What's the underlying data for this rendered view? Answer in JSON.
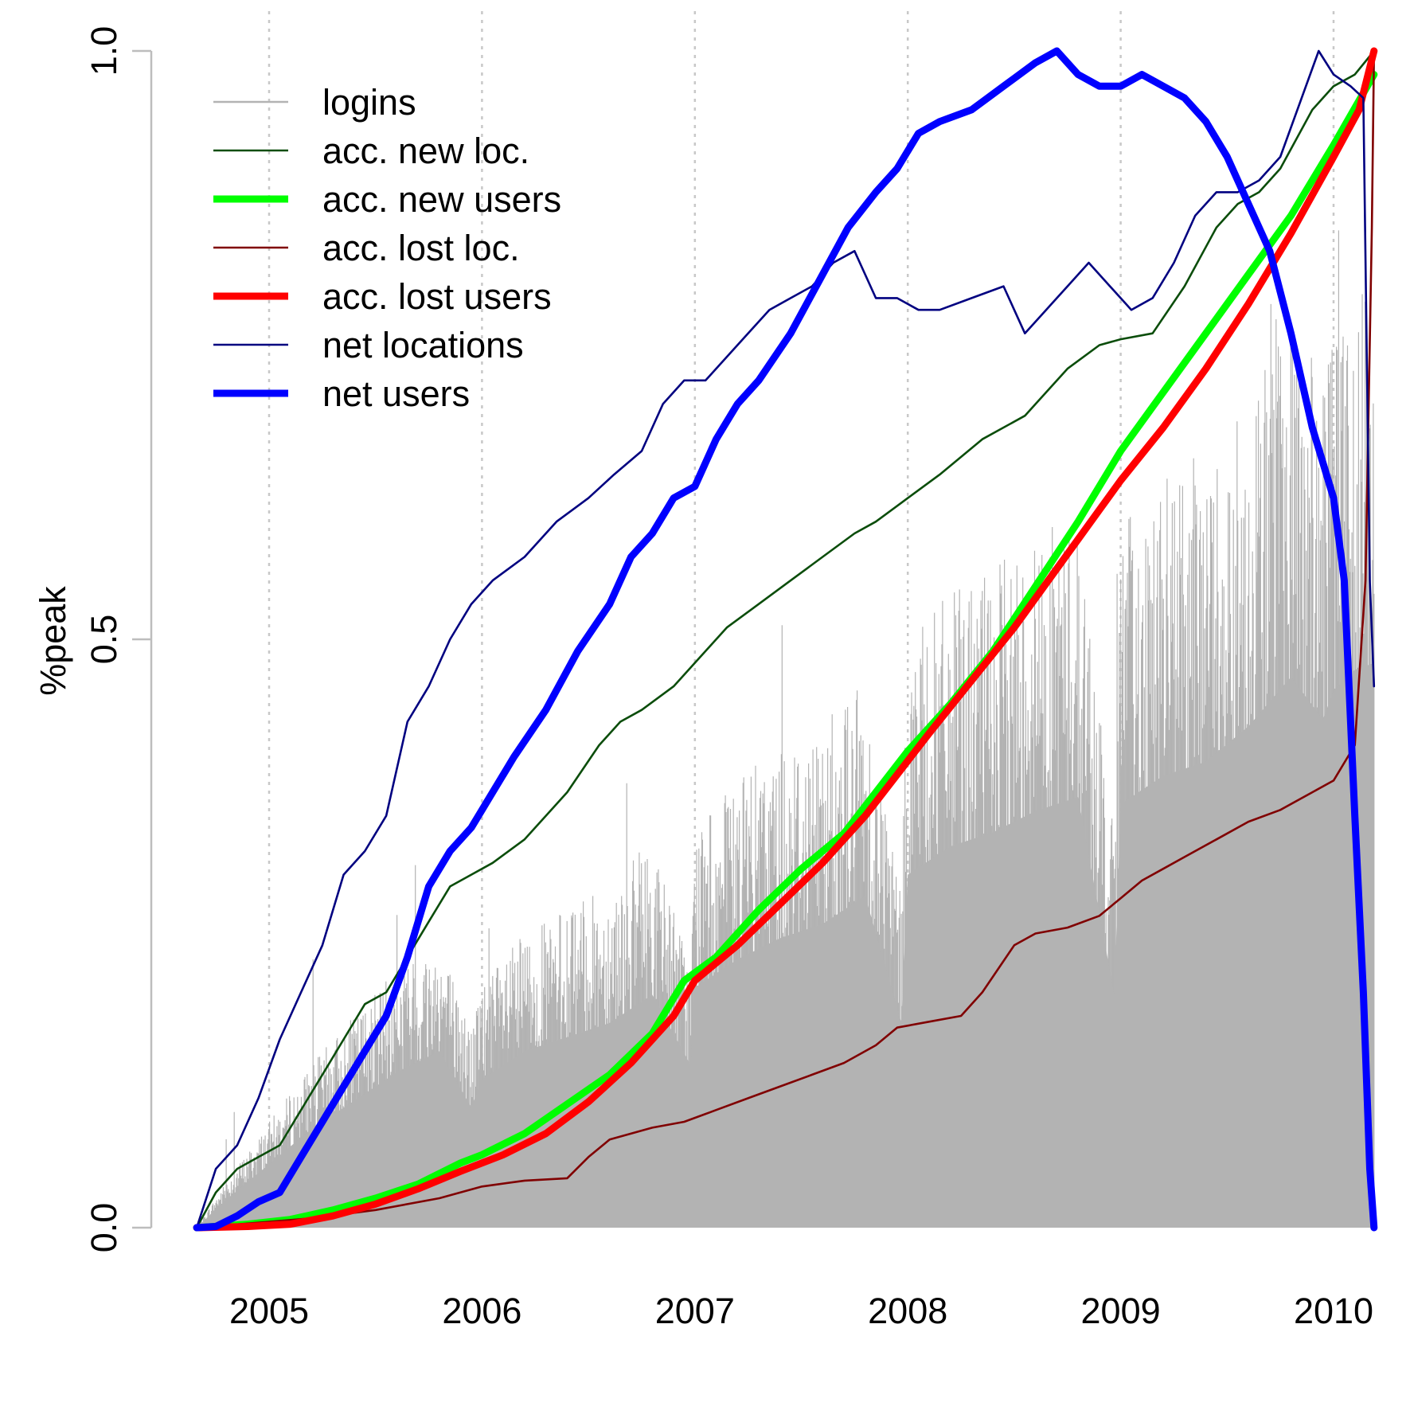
{
  "chart_data": {
    "type": "line",
    "title": "",
    "xlabel": "",
    "ylabel": "%peak",
    "xlim": [
      2004.66,
      2010.19
    ],
    "ylim": [
      0,
      1
    ],
    "x_ticks": [
      2005,
      2006,
      2007,
      2008,
      2009,
      2010
    ],
    "x_tick_labels": [
      "2005",
      "2006",
      "2007",
      "2008",
      "2009",
      "2010"
    ],
    "y_ticks": [
      0,
      0.5,
      1
    ],
    "y_tick_labels": [
      "0.0",
      "0.5",
      "1.0"
    ],
    "grid": "vertical dotted at year ticks",
    "legend_position": "top-left",
    "series": [
      {
        "name": "logins",
        "style": "bars",
        "color": "#b3b3b3",
        "x": [
          2004.66,
          2004.8,
          2005.0,
          2005.2,
          2005.4,
          2005.6,
          2005.8,
          2005.95,
          2006.0,
          2006.2,
          2006.4,
          2006.6,
          2006.8,
          2006.98,
          2007.0,
          2007.2,
          2007.4,
          2007.6,
          2007.8,
          2007.97,
          2008.0,
          2008.2,
          2008.4,
          2008.6,
          2008.8,
          2008.97,
          2009.0,
          2009.2,
          2009.4,
          2009.6,
          2009.8,
          2009.95,
          2010.0,
          2010.1,
          2010.19
        ],
        "y": [
          0.0,
          0.04,
          0.09,
          0.14,
          0.18,
          0.22,
          0.25,
          0.17,
          0.21,
          0.25,
          0.27,
          0.29,
          0.33,
          0.23,
          0.34,
          0.38,
          0.41,
          0.43,
          0.47,
          0.29,
          0.5,
          0.54,
          0.56,
          0.59,
          0.61,
          0.33,
          0.6,
          0.64,
          0.66,
          0.71,
          0.78,
          0.72,
          0.76,
          0.79,
          0.8
        ]
      },
      {
        "name": "acc. new loc.",
        "style": "line",
        "color": "#0b4d0b",
        "x": [
          2004.66,
          2004.75,
          2004.85,
          2004.95,
          2005.05,
          2005.15,
          2005.25,
          2005.35,
          2005.45,
          2005.55,
          2005.65,
          2005.75,
          2005.85,
          2005.95,
          2006.05,
          2006.2,
          2006.4,
          2006.55,
          2006.65,
          2006.75,
          2006.9,
          2007.05,
          2007.15,
          2007.3,
          2007.45,
          2007.6,
          2007.75,
          2007.85,
          2008.0,
          2008.15,
          2008.35,
          2008.55,
          2008.75,
          2008.9,
          2009.0,
          2009.15,
          2009.3,
          2009.45,
          2009.55,
          2009.65,
          2009.75,
          2009.9,
          2010.0,
          2010.1,
          2010.19
        ],
        "y": [
          0.0,
          0.03,
          0.05,
          0.06,
          0.07,
          0.1,
          0.13,
          0.16,
          0.19,
          0.2,
          0.23,
          0.26,
          0.29,
          0.3,
          0.31,
          0.33,
          0.37,
          0.41,
          0.43,
          0.44,
          0.46,
          0.49,
          0.51,
          0.53,
          0.55,
          0.57,
          0.59,
          0.6,
          0.62,
          0.64,
          0.67,
          0.69,
          0.73,
          0.75,
          0.755,
          0.76,
          0.8,
          0.85,
          0.87,
          0.88,
          0.9,
          0.95,
          0.97,
          0.98,
          1.0
        ]
      },
      {
        "name": "acc. new users",
        "style": "line-thick",
        "color": "#00ff00",
        "x": [
          2004.66,
          2004.9,
          2005.1,
          2005.3,
          2005.5,
          2005.7,
          2005.9,
          2006.0,
          2006.2,
          2006.4,
          2006.6,
          2006.8,
          2006.95,
          2007.1,
          2007.3,
          2007.5,
          2007.7,
          2007.85,
          2008.0,
          2008.2,
          2008.4,
          2008.6,
          2008.8,
          2009.0,
          2009.2,
          2009.4,
          2009.6,
          2009.8,
          2010.0,
          2010.19
        ],
        "y": [
          0.0,
          0.003,
          0.007,
          0.015,
          0.025,
          0.037,
          0.055,
          0.062,
          0.08,
          0.105,
          0.13,
          0.165,
          0.21,
          0.23,
          0.27,
          0.305,
          0.335,
          0.37,
          0.405,
          0.445,
          0.49,
          0.545,
          0.6,
          0.66,
          0.71,
          0.76,
          0.81,
          0.86,
          0.92,
          0.98
        ]
      },
      {
        "name": "acc. lost loc.",
        "style": "line",
        "color": "#800000",
        "x": [
          2004.66,
          2005.0,
          2005.2,
          2005.5,
          2005.8,
          2006.0,
          2006.2,
          2006.4,
          2006.5,
          2006.6,
          2006.8,
          2006.95,
          2007.1,
          2007.25,
          2007.4,
          2007.55,
          2007.7,
          2007.85,
          2007.95,
          2008.1,
          2008.25,
          2008.35,
          2008.5,
          2008.6,
          2008.75,
          2008.9,
          2009.0,
          2009.1,
          2009.2,
          2009.3,
          2009.45,
          2009.6,
          2009.75,
          2009.9,
          2010.0,
          2010.1,
          2010.15,
          2010.18,
          2010.19
        ],
        "y": [
          0.0,
          0.005,
          0.008,
          0.015,
          0.025,
          0.035,
          0.04,
          0.042,
          0.06,
          0.075,
          0.085,
          0.09,
          0.1,
          0.11,
          0.12,
          0.13,
          0.14,
          0.155,
          0.17,
          0.175,
          0.18,
          0.2,
          0.24,
          0.25,
          0.255,
          0.265,
          0.28,
          0.295,
          0.305,
          0.315,
          0.33,
          0.345,
          0.355,
          0.37,
          0.38,
          0.41,
          0.55,
          0.85,
          1.0
        ]
      },
      {
        "name": "acc. lost users",
        "style": "line-thick",
        "color": "#ff0000",
        "x": [
          2004.66,
          2004.9,
          2005.1,
          2005.3,
          2005.5,
          2005.7,
          2005.9,
          2006.1,
          2006.3,
          2006.5,
          2006.7,
          2006.9,
          2007.0,
          2007.2,
          2007.4,
          2007.6,
          2007.8,
          2007.95,
          2008.1,
          2008.3,
          2008.5,
          2008.7,
          2008.9,
          2009.0,
          2009.2,
          2009.4,
          2009.6,
          2009.8,
          2010.0,
          2010.12,
          2010.19
        ],
        "y": [
          0.0,
          0.001,
          0.003,
          0.01,
          0.02,
          0.033,
          0.048,
          0.062,
          0.08,
          0.107,
          0.14,
          0.18,
          0.21,
          0.24,
          0.275,
          0.31,
          0.35,
          0.385,
          0.42,
          0.465,
          0.51,
          0.56,
          0.61,
          0.635,
          0.68,
          0.73,
          0.785,
          0.845,
          0.91,
          0.95,
          1.0
        ]
      },
      {
        "name": "net locations",
        "style": "line",
        "color": "#000080",
        "x": [
          2004.66,
          2004.75,
          2004.85,
          2004.95,
          2005.05,
          2005.15,
          2005.25,
          2005.35,
          2005.45,
          2005.55,
          2005.65,
          2005.75,
          2005.85,
          2005.95,
          2006.05,
          2006.2,
          2006.35,
          2006.5,
          2006.62,
          2006.75,
          2006.85,
          2006.95,
          2007.05,
          2007.15,
          2007.25,
          2007.35,
          2007.45,
          2007.55,
          2007.65,
          2007.75,
          2007.85,
          2007.95,
          2008.05,
          2008.15,
          2008.3,
          2008.45,
          2008.55,
          2008.65,
          2008.75,
          2008.85,
          2008.95,
          2009.05,
          2009.15,
          2009.25,
          2009.35,
          2009.45,
          2009.55,
          2009.65,
          2009.75,
          2009.85,
          2009.93,
          2010.0,
          2010.08,
          2010.14,
          2010.17,
          2010.19
        ],
        "y": [
          0.0,
          0.05,
          0.07,
          0.11,
          0.16,
          0.2,
          0.24,
          0.3,
          0.32,
          0.35,
          0.43,
          0.46,
          0.5,
          0.53,
          0.55,
          0.57,
          0.6,
          0.62,
          0.64,
          0.66,
          0.7,
          0.72,
          0.72,
          0.74,
          0.76,
          0.78,
          0.79,
          0.8,
          0.82,
          0.83,
          0.79,
          0.79,
          0.78,
          0.78,
          0.79,
          0.8,
          0.76,
          0.78,
          0.8,
          0.82,
          0.8,
          0.78,
          0.79,
          0.82,
          0.86,
          0.88,
          0.88,
          0.89,
          0.91,
          0.96,
          1.0,
          0.98,
          0.97,
          0.96,
          0.55,
          0.46
        ]
      },
      {
        "name": "net users",
        "style": "line-thick",
        "color": "#0000ff",
        "x": [
          2004.66,
          2004.75,
          2004.85,
          2004.95,
          2005.05,
          2005.15,
          2005.25,
          2005.35,
          2005.45,
          2005.55,
          2005.65,
          2005.75,
          2005.85,
          2005.95,
          2006.05,
          2006.15,
          2006.3,
          2006.45,
          2006.6,
          2006.7,
          2006.8,
          2006.9,
          2007.0,
          2007.1,
          2007.2,
          2007.3,
          2007.45,
          2007.6,
          2007.72,
          2007.85,
          2007.95,
          2008.05,
          2008.15,
          2008.3,
          2008.45,
          2008.6,
          2008.7,
          2008.8,
          2008.9,
          2009.0,
          2009.1,
          2009.2,
          2009.3,
          2009.4,
          2009.5,
          2009.6,
          2009.7,
          2009.8,
          2009.9,
          2010.0,
          2010.05,
          2010.1,
          2010.14,
          2010.17,
          2010.19
        ],
        "y": [
          0.0,
          0.001,
          0.01,
          0.022,
          0.03,
          0.06,
          0.09,
          0.12,
          0.15,
          0.18,
          0.23,
          0.29,
          0.32,
          0.34,
          0.37,
          0.4,
          0.44,
          0.49,
          0.53,
          0.57,
          0.59,
          0.62,
          0.63,
          0.67,
          0.7,
          0.72,
          0.76,
          0.81,
          0.85,
          0.88,
          0.9,
          0.93,
          0.94,
          0.95,
          0.97,
          0.99,
          1.0,
          0.98,
          0.97,
          0.97,
          0.98,
          0.97,
          0.96,
          0.94,
          0.91,
          0.87,
          0.83,
          0.76,
          0.68,
          0.62,
          0.55,
          0.35,
          0.2,
          0.05,
          0.0
        ]
      }
    ]
  }
}
